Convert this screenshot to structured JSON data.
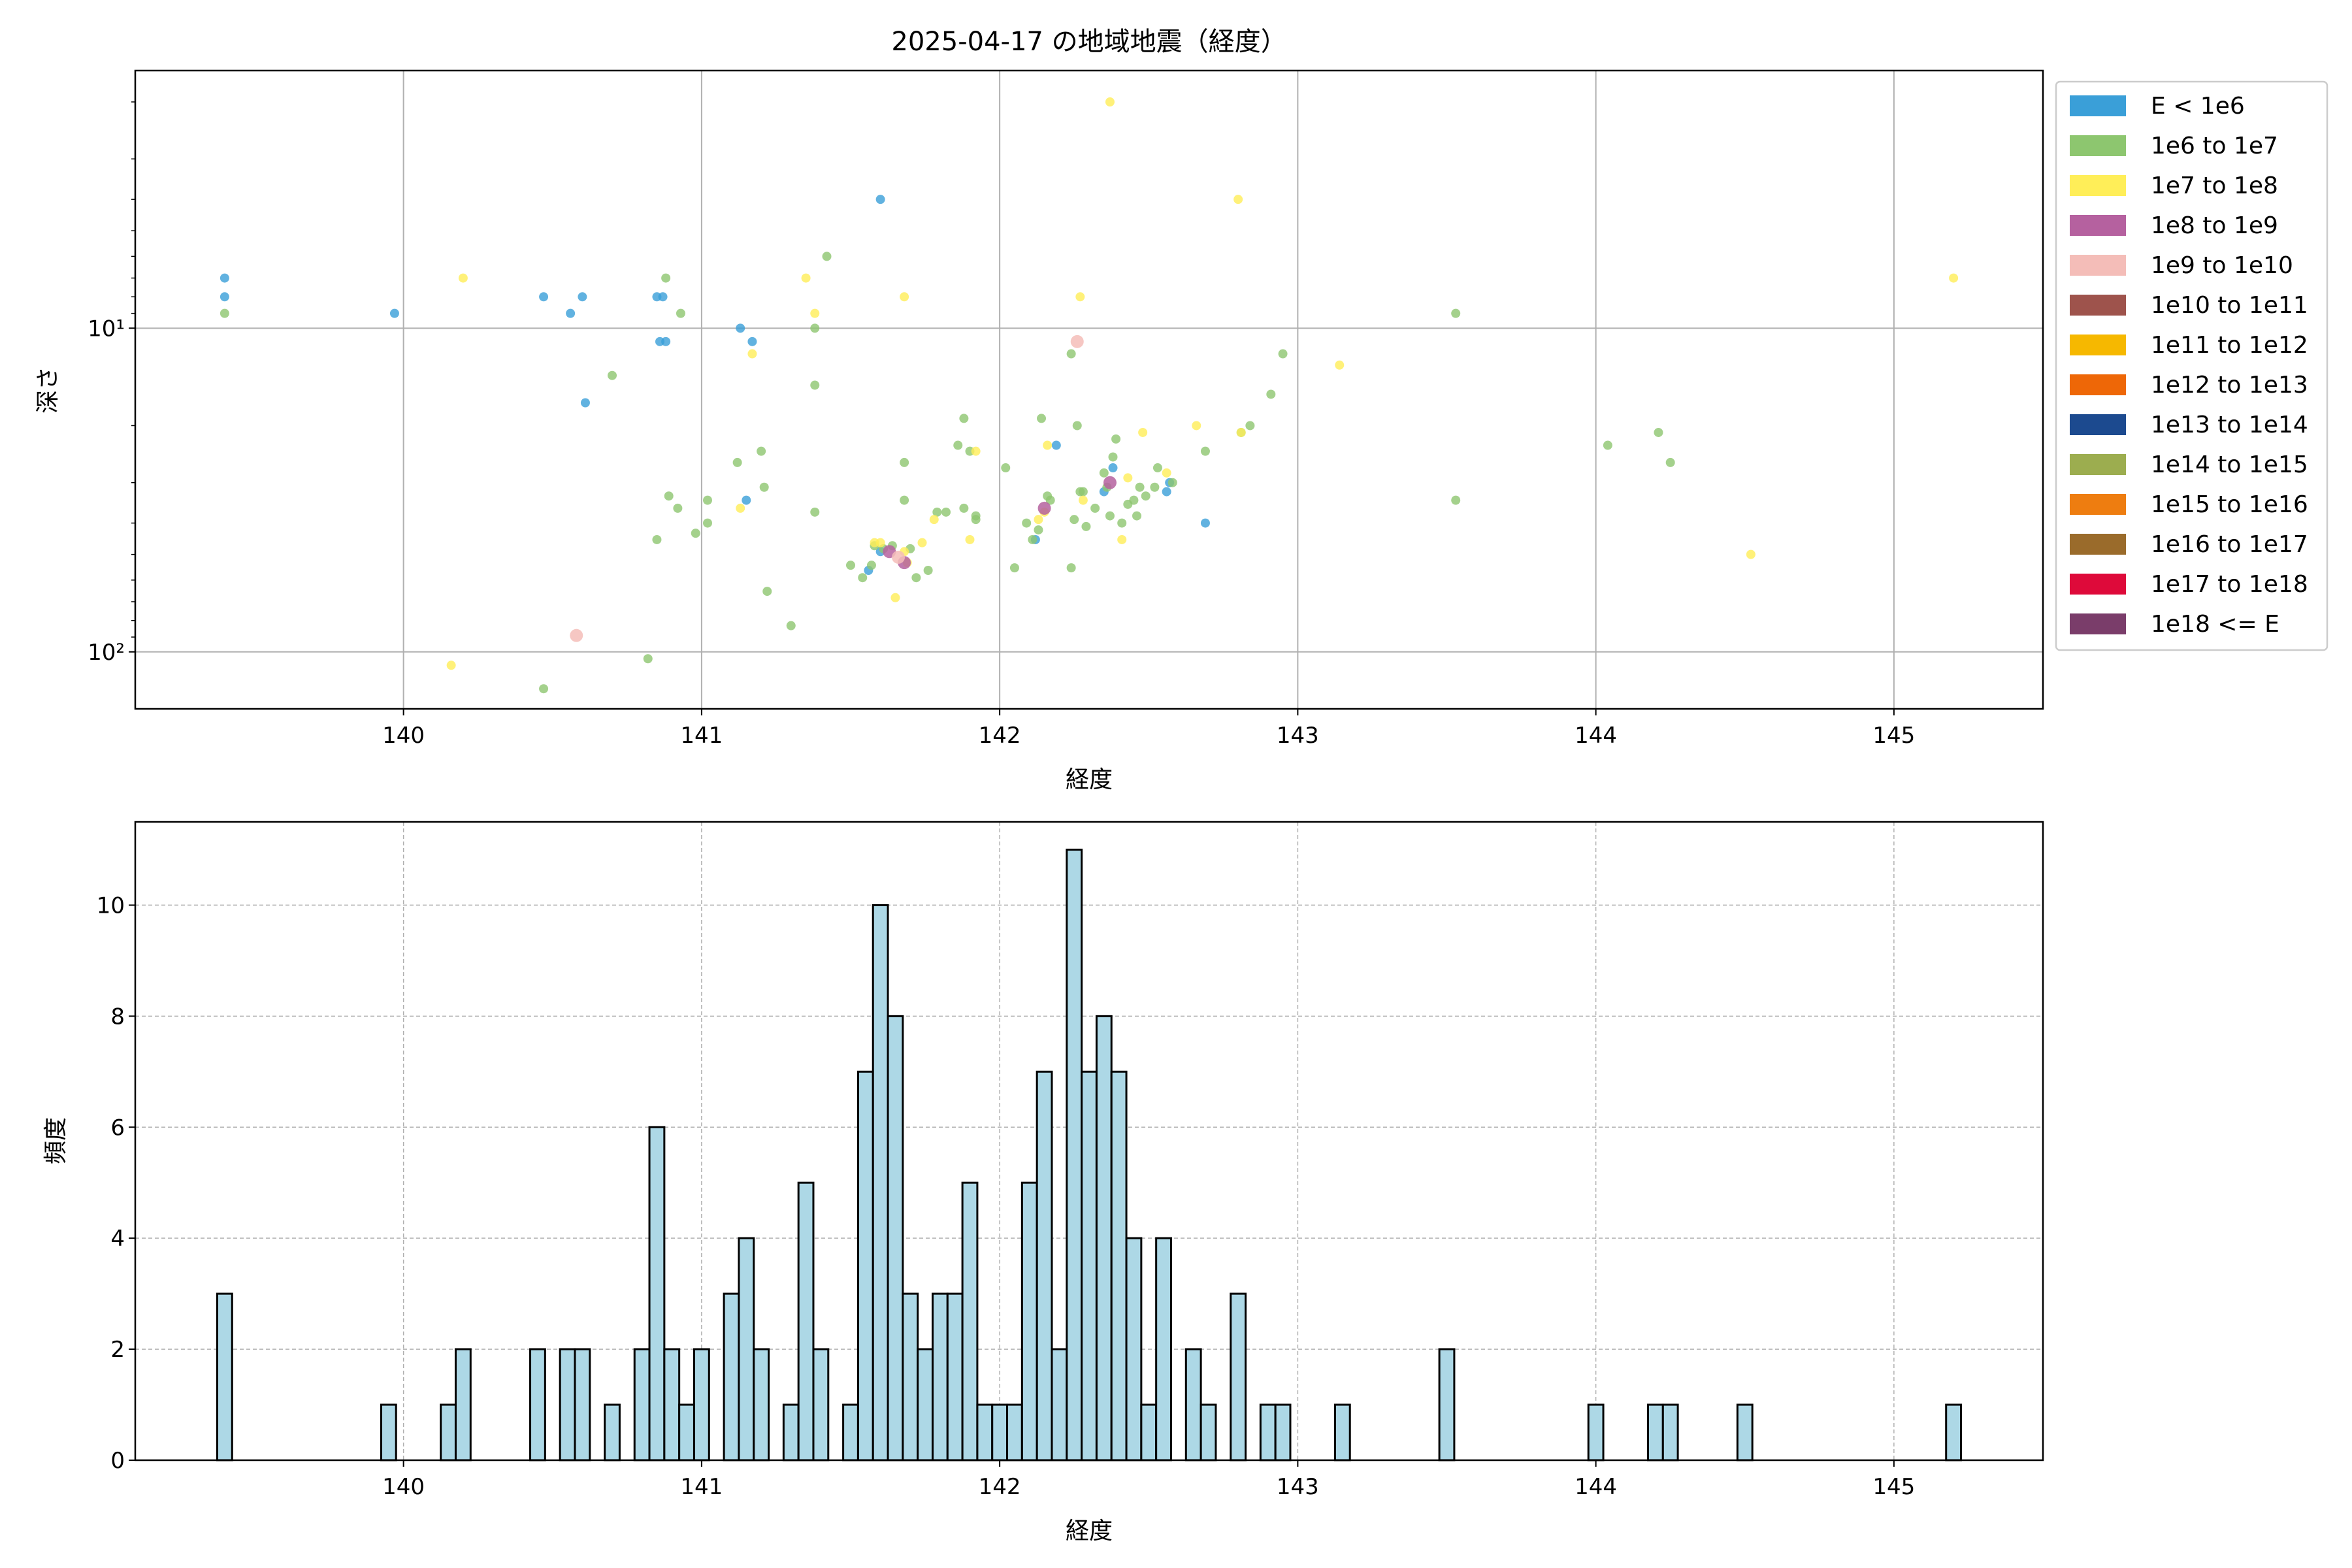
{
  "chart_data": [
    {
      "type": "scatter",
      "title": "2025-04-17 の地域地震（経度）",
      "xlabel": "経度",
      "ylabel": "深さ",
      "xlim": [
        139.1,
        145.5
      ],
      "ylim": [
        150,
        1.6
      ],
      "yscale": "log",
      "y_inverted": true,
      "xticks": [
        140,
        141,
        142,
        143,
        144,
        145
      ],
      "yticks": [
        10,
        100
      ],
      "ytick_labels": [
        "10¹",
        "10²"
      ],
      "grid": true,
      "legend_position": "outside-right",
      "legend": [
        {
          "label": "E < 1e6",
          "color": "#3a9fd8"
        },
        {
          "label": "1e6 to 1e7",
          "color": "#8dc66f"
        },
        {
          "label": "1e7 to 1e8",
          "color": "#ffee58"
        },
        {
          "label": "1e8 to 1e9",
          "color": "#b5619f"
        },
        {
          "label": "1e9 to 1e10",
          "color": "#f4bdb8"
        },
        {
          "label": "1e10 to 1e11",
          "color": "#9e534c"
        },
        {
          "label": "1e11 to 1e12",
          "color": "#f6b800"
        },
        {
          "label": "1e12 to 1e13",
          "color": "#ee6707"
        },
        {
          "label": "1e13 to 1e14",
          "color": "#1c4a8f"
        },
        {
          "label": "1e14 to 1e15",
          "color": "#9cad4f"
        },
        {
          "label": "1e15 to 1e16",
          "color": "#ee7d10"
        },
        {
          "label": "1e16 to 1e17",
          "color": "#9a6b2b"
        },
        {
          "label": "1e17 to 1e18",
          "color": "#de0a3a"
        },
        {
          "label": "1e18 <= E",
          "color": "#7a3d6a"
        }
      ],
      "series": [
        {
          "name": "E < 1e6",
          "color": "#3a9fd8",
          "points": [
            [
              139.4,
              7
            ],
            [
              139.4,
              8
            ],
            [
              139.97,
              9
            ],
            [
              140.47,
              8
            ],
            [
              140.56,
              9
            ],
            [
              140.6,
              8
            ],
            [
              140.61,
              17
            ],
            [
              140.85,
              8
            ],
            [
              140.87,
              8
            ],
            [
              140.86,
              11
            ],
            [
              140.88,
              11
            ],
            [
              141.13,
              10
            ],
            [
              141.17,
              11
            ],
            [
              141.15,
              34
            ],
            [
              141.6,
              4
            ],
            [
              141.6,
              49
            ],
            [
              141.56,
              56
            ],
            [
              142.12,
              45
            ],
            [
              142.19,
              23
            ],
            [
              142.38,
              27
            ],
            [
              142.35,
              32
            ],
            [
              142.56,
              32
            ],
            [
              142.57,
              30
            ],
            [
              142.69,
              40
            ]
          ]
        },
        {
          "name": "1e6 to 1e7",
          "color": "#8dc66f",
          "points": [
            [
              139.4,
              9
            ],
            [
              140.82,
              105
            ],
            [
              140.47,
              130
            ],
            [
              140.85,
              45
            ],
            [
              140.89,
              33
            ],
            [
              140.92,
              36
            ],
            [
              140.88,
              7
            ],
            [
              140.93,
              9
            ],
            [
              140.7,
              14
            ],
            [
              140.98,
              43
            ],
            [
              141.02,
              34
            ],
            [
              141.02,
              40
            ],
            [
              141.12,
              26
            ],
            [
              141.2,
              24
            ],
            [
              141.21,
              31
            ],
            [
              141.22,
              65
            ],
            [
              141.3,
              83
            ],
            [
              141.38,
              37
            ],
            [
              141.38,
              15
            ],
            [
              141.42,
              6
            ],
            [
              141.38,
              10
            ],
            [
              141.5,
              54
            ],
            [
              141.54,
              59
            ],
            [
              141.57,
              54
            ],
            [
              141.58,
              47
            ],
            [
              141.61,
              48
            ],
            [
              141.64,
              47
            ],
            [
              141.68,
              34
            ],
            [
              141.68,
              26
            ],
            [
              141.7,
              48
            ],
            [
              141.72,
              59
            ],
            [
              141.76,
              56
            ],
            [
              141.79,
              37
            ],
            [
              141.82,
              37
            ],
            [
              141.86,
              23
            ],
            [
              141.88,
              36
            ],
            [
              141.88,
              19
            ],
            [
              141.9,
              24
            ],
            [
              141.92,
              38
            ],
            [
              141.92,
              39
            ],
            [
              142.02,
              27
            ],
            [
              142.05,
              55
            ],
            [
              142.09,
              40
            ],
            [
              142.11,
              45
            ],
            [
              142.13,
              42
            ],
            [
              142.14,
              19
            ],
            [
              142.16,
              33
            ],
            [
              142.17,
              34
            ],
            [
              142.24,
              12
            ],
            [
              142.24,
              55
            ],
            [
              142.25,
              39
            ],
            [
              142.26,
              20
            ],
            [
              142.27,
              32
            ],
            [
              142.28,
              32
            ],
            [
              142.29,
              41
            ],
            [
              142.32,
              36
            ],
            [
              142.35,
              28
            ],
            [
              142.36,
              31
            ],
            [
              142.37,
              38
            ],
            [
              142.38,
              25
            ],
            [
              142.39,
              22
            ],
            [
              142.41,
              40
            ],
            [
              142.43,
              35
            ],
            [
              142.45,
              34
            ],
            [
              142.46,
              38
            ],
            [
              142.47,
              31
            ],
            [
              142.49,
              33
            ],
            [
              142.52,
              31
            ],
            [
              142.53,
              27
            ],
            [
              142.58,
              30
            ],
            [
              142.69,
              24
            ],
            [
              142.81,
              21
            ],
            [
              142.84,
              20
            ],
            [
              142.91,
              16
            ],
            [
              142.95,
              12
            ],
            [
              143.53,
              9
            ],
            [
              143.53,
              34
            ],
            [
              144.04,
              23
            ],
            [
              144.21,
              21
            ],
            [
              144.25,
              26
            ]
          ]
        },
        {
          "name": "1e7 to 1e8",
          "color": "#ffee58",
          "points": [
            [
              142.37,
              2
            ],
            [
              142.8,
              4
            ],
            [
              145.2,
              7
            ],
            [
              140.2,
              7
            ],
            [
              141.35,
              7
            ],
            [
              141.38,
              9
            ],
            [
              141.68,
              8
            ],
            [
              142.27,
              8
            ],
            [
              141.17,
              12
            ],
            [
              140.16,
              110
            ],
            [
              141.65,
              68
            ],
            [
              141.13,
              36
            ],
            [
              141.58,
              46
            ],
            [
              141.6,
              46
            ],
            [
              141.68,
              49
            ],
            [
              141.74,
              46
            ],
            [
              141.78,
              39
            ],
            [
              141.9,
              45
            ],
            [
              141.92,
              24
            ],
            [
              142.13,
              39
            ],
            [
              142.15,
              37
            ],
            [
              142.16,
              23
            ],
            [
              142.28,
              34
            ],
            [
              142.41,
              45
            ],
            [
              142.43,
              29
            ],
            [
              142.48,
              21
            ],
            [
              142.56,
              28
            ],
            [
              142.66,
              20
            ],
            [
              142.81,
              21
            ],
            [
              143.14,
              13
            ],
            [
              144.52,
              50
            ],
            [
              141.69,
              53
            ]
          ]
        },
        {
          "name": "1e8 to 1e9",
          "color": "#b5619f",
          "points": [
            [
              141.63,
              49
            ],
            [
              141.68,
              53
            ],
            [
              142.15,
              36
            ],
            [
              142.37,
              30
            ]
          ]
        },
        {
          "name": "1e9 to 1e10",
          "color": "#f4bdb8",
          "points": [
            [
              140.58,
              89
            ],
            [
              142.26,
              11
            ],
            [
              141.66,
              51
            ]
          ]
        }
      ]
    },
    {
      "type": "bar",
      "title": "",
      "xlabel": "経度",
      "ylabel": "頻度",
      "xlim": [
        139.1,
        145.5
      ],
      "ylim": [
        0,
        11.5
      ],
      "xticks": [
        140,
        141,
        142,
        143,
        144,
        145
      ],
      "yticks": [
        0,
        2,
        4,
        6,
        8,
        10
      ],
      "grid": true,
      "bar_color": "#add8e6",
      "bin_width": 0.05,
      "bins": [
        [
          139.4,
          3
        ],
        [
          139.95,
          1
        ],
        [
          140.15,
          1
        ],
        [
          140.2,
          2
        ],
        [
          140.45,
          2
        ],
        [
          140.55,
          2
        ],
        [
          140.6,
          2
        ],
        [
          140.7,
          1
        ],
        [
          140.8,
          2
        ],
        [
          140.85,
          6
        ],
        [
          140.9,
          2
        ],
        [
          140.95,
          1
        ],
        [
          141.0,
          2
        ],
        [
          141.1,
          3
        ],
        [
          141.15,
          4
        ],
        [
          141.2,
          2
        ],
        [
          141.3,
          1
        ],
        [
          141.35,
          5
        ],
        [
          141.4,
          2
        ],
        [
          141.5,
          1
        ],
        [
          141.55,
          7
        ],
        [
          141.6,
          10
        ],
        [
          141.65,
          8
        ],
        [
          141.7,
          3
        ],
        [
          141.75,
          2
        ],
        [
          141.8,
          3
        ],
        [
          141.85,
          3
        ],
        [
          141.9,
          5
        ],
        [
          141.95,
          1
        ],
        [
          142.0,
          1
        ],
        [
          142.05,
          1
        ],
        [
          142.1,
          5
        ],
        [
          142.15,
          7
        ],
        [
          142.2,
          2
        ],
        [
          142.25,
          11
        ],
        [
          142.3,
          7
        ],
        [
          142.35,
          8
        ],
        [
          142.4,
          7
        ],
        [
          142.45,
          4
        ],
        [
          142.5,
          1
        ],
        [
          142.55,
          4
        ],
        [
          142.65,
          2
        ],
        [
          142.7,
          1
        ],
        [
          142.8,
          3
        ],
        [
          142.9,
          1
        ],
        [
          142.95,
          1
        ],
        [
          143.15,
          1
        ],
        [
          143.5,
          2
        ],
        [
          144.0,
          1
        ],
        [
          144.2,
          1
        ],
        [
          144.25,
          1
        ],
        [
          144.5,
          1
        ],
        [
          145.2,
          1
        ]
      ]
    }
  ]
}
